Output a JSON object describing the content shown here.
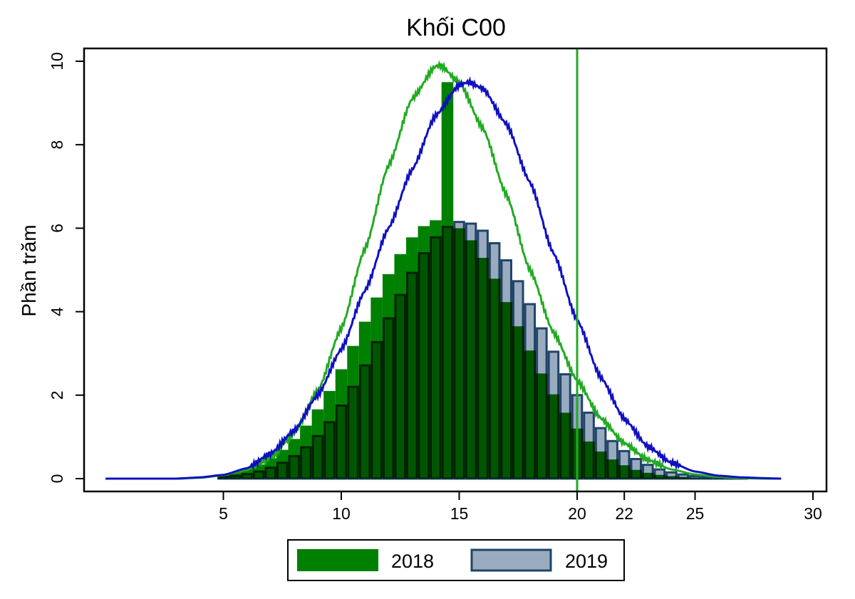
{
  "chart_data": {
    "type": "bar",
    "title": "Khối C00",
    "xlabel": "",
    "ylabel": "Phần trăm",
    "xlim": [
      0,
      30
    ],
    "ylim": [
      0,
      10
    ],
    "x_ticks": [
      5,
      10,
      15,
      20,
      22,
      25,
      30
    ],
    "y_ticks": [
      0,
      2,
      4,
      6,
      8,
      10
    ],
    "grid": false,
    "legend_position": "bottom",
    "reference_line_x": 20,
    "bin_width": 0.5,
    "bin_centers": [
      5,
      5.5,
      6,
      6.5,
      7,
      7.5,
      8,
      8.5,
      9,
      9.5,
      10,
      10.5,
      11,
      11.5,
      12,
      12.5,
      13,
      13.5,
      14,
      14.5,
      15,
      15.5,
      16,
      16.5,
      17,
      17.5,
      18,
      18.5,
      19,
      19.5,
      20,
      20.5,
      21,
      21.5,
      22,
      22.5,
      23,
      23.5,
      24,
      24.5,
      25,
      25.5,
      26,
      26.5,
      27,
      27.5
    ],
    "series": [
      {
        "name": "2018",
        "kind": "histogram",
        "color": "#008000",
        "values": [
          0.1,
          0.15,
          0.23,
          0.34,
          0.49,
          0.69,
          0.95,
          1.27,
          1.66,
          2.1,
          2.62,
          3.18,
          3.76,
          4.34,
          4.9,
          5.38,
          5.78,
          6.05,
          6.19,
          9.5,
          6.0,
          5.71,
          5.29,
          4.79,
          4.23,
          3.65,
          3.07,
          2.52,
          2.02,
          1.58,
          1.2,
          0.89,
          0.65,
          0.46,
          0.32,
          0.21,
          0.14,
          0.09,
          0.06,
          0.04,
          0.02,
          0.01,
          0.01,
          0,
          0,
          0
        ]
      },
      {
        "name": "2019",
        "kind": "histogram",
        "color": "#9aabc0",
        "outline": "#1f4468",
        "values": [
          0.05,
          0.07,
          0.11,
          0.17,
          0.26,
          0.38,
          0.54,
          0.75,
          1.02,
          1.35,
          1.75,
          2.2,
          2.71,
          3.27,
          3.84,
          4.4,
          4.93,
          5.4,
          5.78,
          6.03,
          6.15,
          6.11,
          5.94,
          5.64,
          5.23,
          4.73,
          4.18,
          3.6,
          3.04,
          2.5,
          2.0,
          1.58,
          1.21,
          0.9,
          0.66,
          0.47,
          0.33,
          0.22,
          0.15,
          0.1,
          0.06,
          0.04,
          0.02,
          0.01,
          0.01,
          0
        ]
      }
    ],
    "curves": [
      {
        "kind": "density-line",
        "color": "#22aa22",
        "x": [
          0,
          1,
          2,
          3,
          4,
          5,
          6,
          7,
          8,
          9,
          10,
          11,
          12,
          13,
          14,
          14.2,
          15,
          16,
          17,
          18,
          19,
          20,
          21,
          22,
          23,
          24,
          25,
          26,
          27,
          28,
          28.7
        ],
        "y": [
          0,
          0,
          0,
          0,
          0.02,
          0.08,
          0.21,
          0.5,
          1.09,
          2.1,
          3.6,
          5.5,
          7.5,
          9.1,
          9.88,
          9.9,
          9.5,
          8.4,
          6.8,
          5.0,
          3.5,
          2.35,
          1.45,
          0.85,
          0.45,
          0.22,
          0.1,
          0.04,
          0.01,
          0,
          0
        ]
      },
      {
        "kind": "density-line",
        "color": "#1010c0",
        "x": [
          0,
          1,
          2,
          3,
          4,
          5,
          6,
          7,
          8,
          9,
          10,
          11,
          12,
          13,
          14,
          15,
          15.4,
          16,
          17,
          18,
          19,
          20,
          21,
          22,
          23,
          24,
          25,
          26,
          27,
          28,
          28.7
        ],
        "y": [
          0,
          0,
          0,
          0,
          0.03,
          0.09,
          0.25,
          0.6,
          1.15,
          2.0,
          3.1,
          4.5,
          6.0,
          7.4,
          8.7,
          9.43,
          9.5,
          9.35,
          8.5,
          7.1,
          5.4,
          3.8,
          2.43,
          1.43,
          0.77,
          0.38,
          0.17,
          0.07,
          0.03,
          0.01,
          0
        ]
      }
    ],
    "legend": [
      {
        "label": "2018",
        "color": "#008000"
      },
      {
        "label": "2019",
        "color": "#9aabc0",
        "outline": "#1f4468"
      }
    ]
  }
}
